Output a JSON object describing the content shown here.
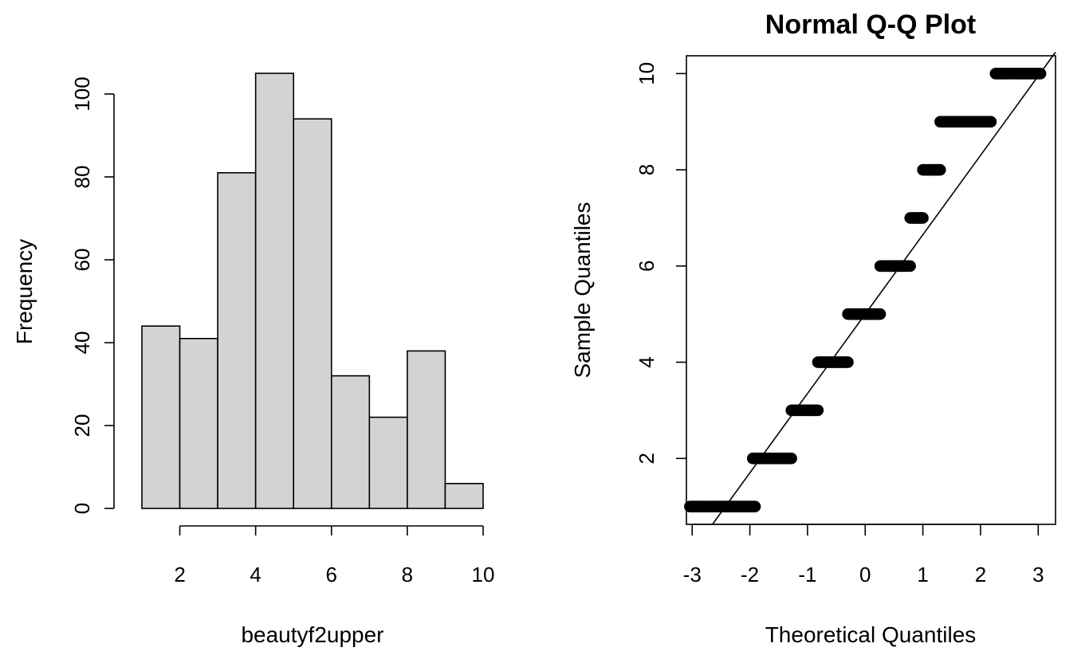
{
  "chart_data": [
    {
      "type": "bar",
      "subtype": "histogram",
      "title": "",
      "xlabel": "beautyf2upper",
      "ylabel": "Frequency",
      "bin_edges": [
        1,
        2,
        3,
        4,
        5,
        6,
        7,
        8,
        9,
        10
      ],
      "values": [
        44,
        41,
        81,
        105,
        94,
        32,
        22,
        38,
        6
      ],
      "xticks": [
        2,
        4,
        6,
        8,
        10
      ],
      "yticks": [
        0,
        20,
        40,
        60,
        80,
        100
      ],
      "xlim": [
        1,
        10
      ],
      "ylim": [
        0,
        105
      ],
      "bar_color": "#d3d3d3",
      "grid": false
    },
    {
      "type": "scatter",
      "subtype": "normal-qq",
      "title": "Normal Q-Q Plot",
      "xlabel": "Theoretical Quantiles",
      "ylabel": "Sample Quantiles",
      "xticks": [
        -3,
        -2,
        -1,
        0,
        1,
        2,
        3
      ],
      "yticks": [
        2,
        4,
        6,
        8,
        10
      ],
      "xlim": [
        -3.1,
        3.3
      ],
      "ylim": [
        0.63,
        10.37
      ],
      "sample_value_counts": [
        {
          "value": 1,
          "count": 44
        },
        {
          "value": 2,
          "count": 41
        },
        {
          "value": 3,
          "count": 81
        },
        {
          "value": 4,
          "count": 105
        },
        {
          "value": 5,
          "count": 94
        },
        {
          "value": 6,
          "count": 32
        },
        {
          "value": 7,
          "count": 22
        },
        {
          "value": 8,
          "count": 38
        },
        {
          "value": 9,
          "count": 6
        }
      ],
      "extra_points": [
        {
          "value": 10,
          "count": 0
        }
      ],
      "points_note_values": [
        {
          "value": 1,
          "x_range": [
            -3.04,
            -1.91
          ]
        },
        {
          "value": 2,
          "x_range": [
            -1.95,
            -1.28
          ]
        },
        {
          "value": 3,
          "x_range": [
            -1.28,
            -0.82
          ]
        },
        {
          "value": 4,
          "x_range": [
            -0.82,
            -0.3
          ]
        },
        {
          "value": 5,
          "x_range": [
            -0.3,
            0.26
          ]
        },
        {
          "value": 6,
          "x_range": [
            0.26,
            0.78
          ]
        },
        {
          "value": 7,
          "x_range": [
            0.78,
            1.0
          ]
        },
        {
          "value": 8,
          "x_range": [
            1.0,
            1.3
          ]
        },
        {
          "value": 9,
          "x_range": [
            1.3,
            2.18
          ]
        },
        {
          "value": 10,
          "x_range": [
            2.26,
            3.04
          ]
        }
      ],
      "reference_line": {
        "intercept": 5.0,
        "slope": 1.65
      },
      "grid": false
    }
  ]
}
